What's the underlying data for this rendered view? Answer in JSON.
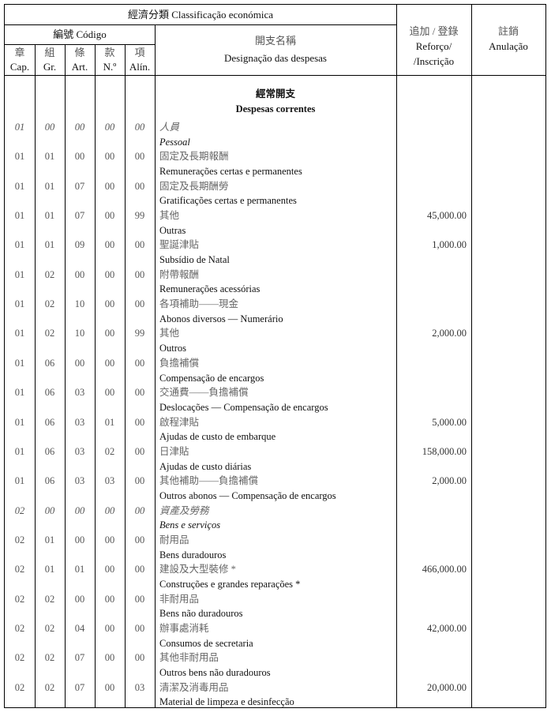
{
  "header": {
    "classification": "經濟分類  Classificação económica",
    "code": "編號 Código",
    "columns": [
      {
        "zh": "章",
        "pt": "Cap."
      },
      {
        "zh": "組",
        "pt": "Gr."
      },
      {
        "zh": "條",
        "pt": "Art."
      },
      {
        "zh": "款",
        "pt": "N.º"
      },
      {
        "zh": "項",
        "pt": "Alín."
      }
    ],
    "designation_zh": "開支名稱",
    "designation_pt": "Designação das despesas",
    "reforco_zh": "追加 / 登錄",
    "reforco_pt1": "Reforço/",
    "reforco_pt2": "/Inscrição",
    "anulacao_zh": "註銷",
    "anulacao_pt": "Anulação"
  },
  "section": {
    "zh": "經常開支",
    "pt": "Despesas correntes"
  },
  "rows": [
    {
      "code": [
        "01",
        "00",
        "00",
        "00",
        "00"
      ],
      "zh": "人員",
      "pt": "Pessoal",
      "amount": "",
      "italic": true
    },
    {
      "code": [
        "01",
        "01",
        "00",
        "00",
        "00"
      ],
      "zh": "固定及長期報酬",
      "pt": "Remunerações certas e permanentes",
      "amount": ""
    },
    {
      "code": [
        "01",
        "01",
        "07",
        "00",
        "00"
      ],
      "zh": "固定及長期酬勞",
      "pt": "Gratificações certas e permanentes",
      "amount": ""
    },
    {
      "code": [
        "01",
        "01",
        "07",
        "00",
        "99"
      ],
      "zh": "其他",
      "pt": "Outras",
      "amount": "45,000.00"
    },
    {
      "code": [
        "01",
        "01",
        "09",
        "00",
        "00"
      ],
      "zh": "聖誕津貼",
      "pt": "Subsídio de Natal",
      "amount": "1,000.00"
    },
    {
      "code": [
        "01",
        "02",
        "00",
        "00",
        "00"
      ],
      "zh": "附帶報酬",
      "pt": "Remunerações acessórias",
      "amount": ""
    },
    {
      "code": [
        "01",
        "02",
        "10",
        "00",
        "00"
      ],
      "zh": "各項補助——現金",
      "pt": "Abonos diversos — Numerário",
      "amount": ""
    },
    {
      "code": [
        "01",
        "02",
        "10",
        "00",
        "99"
      ],
      "zh": "其他",
      "pt": "Outros",
      "amount": "2,000.00"
    },
    {
      "code": [
        "01",
        "06",
        "00",
        "00",
        "00"
      ],
      "zh": "負擔補償",
      "pt": "Compensação de encargos",
      "amount": ""
    },
    {
      "code": [
        "01",
        "06",
        "03",
        "00",
        "00"
      ],
      "zh": "交通費——負擔補償",
      "pt": "Deslocações — Compensação de encargos",
      "amount": ""
    },
    {
      "code": [
        "01",
        "06",
        "03",
        "01",
        "00"
      ],
      "zh": "啟程津貼",
      "pt": "Ajudas de custo de embarque",
      "amount": "5,000.00"
    },
    {
      "code": [
        "01",
        "06",
        "03",
        "02",
        "00"
      ],
      "zh": "日津貼",
      "pt": "Ajudas de custo diárias",
      "amount": "158,000.00"
    },
    {
      "code": [
        "01",
        "06",
        "03",
        "03",
        "00"
      ],
      "zh": "其他補助——負擔補償",
      "pt": "Outros abonos — Compensação de encargos",
      "amount": "2,000.00"
    },
    {
      "code": [
        "02",
        "00",
        "00",
        "00",
        "00"
      ],
      "zh": "資產及勞務",
      "pt": "Bens e serviços",
      "amount": "",
      "italic": true
    },
    {
      "code": [
        "02",
        "01",
        "00",
        "00",
        "00"
      ],
      "zh": "耐用品",
      "pt": "Bens duradouros",
      "amount": ""
    },
    {
      "code": [
        "02",
        "01",
        "01",
        "00",
        "00"
      ],
      "zh": "建設及大型裝修 *",
      "pt": "Construções e grandes reparações *",
      "amount": "466,000.00"
    },
    {
      "code": [
        "02",
        "02",
        "00",
        "00",
        "00"
      ],
      "zh": "非耐用品",
      "pt": "Bens não duradouros",
      "amount": ""
    },
    {
      "code": [
        "02",
        "02",
        "04",
        "00",
        "00"
      ],
      "zh": "辦事處消耗",
      "pt": "Consumos de secretaria",
      "amount": "42,000.00"
    },
    {
      "code": [
        "02",
        "02",
        "07",
        "00",
        "00"
      ],
      "zh": "其他非耐用品",
      "pt": "Outros bens não duradouros",
      "amount": ""
    },
    {
      "code": [
        "02",
        "02",
        "07",
        "00",
        "03"
      ],
      "zh": "清潔及消毒用品",
      "pt": "Material de limpeza e desinfecção",
      "amount": "20,000.00"
    }
  ]
}
